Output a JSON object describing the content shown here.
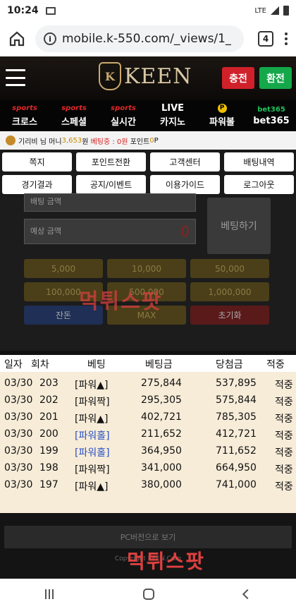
{
  "status": {
    "time": "10:24",
    "network": "LTE"
  },
  "browser": {
    "url": "mobile.k-550.com/_views/1_",
    "tab_count": "4"
  },
  "header": {
    "logo_letter": "K",
    "logo_text": "KEEN",
    "charge_label": "충전",
    "exchange_label": "환전"
  },
  "nav": [
    {
      "top": "sports",
      "label": "크로스"
    },
    {
      "top": "sports",
      "label": "스페셜"
    },
    {
      "top": "sports",
      "label": "실시간"
    },
    {
      "top": "LIVE",
      "label": "카지노"
    },
    {
      "top": "P",
      "label": "파워볼"
    },
    {
      "top": "bet365",
      "label": "bet365"
    }
  ],
  "info": {
    "user": "기리비 님",
    "money_label": "머니",
    "money": "3,653",
    "won": "원",
    "betting": "베팅중 : 0원",
    "point_label": "포인트",
    "point": "0",
    "point_unit": "P"
  },
  "menu": [
    "쪽지",
    "포인트전환",
    "고객센터",
    "배팅내역",
    "경기결과",
    "공지/이벤트",
    "이용가이드",
    "로그아웃"
  ],
  "bet": {
    "field1": "배팅 금액",
    "field2": "예상 금액",
    "field2_value": "0",
    "bet_button": "베팅하기",
    "chips": [
      "5,000",
      "10,000",
      "50,000",
      "100,000",
      "500,000",
      "1,000,000"
    ],
    "actions": [
      "잔돈",
      "MAX",
      "초기화"
    ]
  },
  "watermark": "먹튀스팟",
  "table": {
    "headers": [
      "일자",
      "회차",
      "베팅",
      "베팅금",
      "당첨금",
      "적중"
    ],
    "rows": [
      {
        "date": "03/30",
        "round": "203",
        "bet": "[파워▲]",
        "amount": "275,844",
        "win": "537,895",
        "result": "적중",
        "blue": false
      },
      {
        "date": "03/30",
        "round": "202",
        "bet": "[파워짝]",
        "amount": "295,305",
        "win": "575,844",
        "result": "적중",
        "blue": false
      },
      {
        "date": "03/30",
        "round": "201",
        "bet": "[파워▲]",
        "amount": "402,721",
        "win": "785,305",
        "result": "적중",
        "blue": false
      },
      {
        "date": "03/30",
        "round": "200",
        "bet": "[파워홀]",
        "amount": "211,652",
        "win": "412,721",
        "result": "적중",
        "blue": true
      },
      {
        "date": "03/30",
        "round": "199",
        "bet": "[파워홀]",
        "amount": "364,950",
        "win": "711,652",
        "result": "적중",
        "blue": true
      },
      {
        "date": "03/30",
        "round": "198",
        "bet": "[파워짝]",
        "amount": "341,000",
        "win": "664,950",
        "result": "적중",
        "blue": false
      },
      {
        "date": "03/30",
        "round": "197",
        "bet": "[파워▲]",
        "amount": "380,000",
        "win": "741,000",
        "result": "적중",
        "blue": false
      }
    ]
  },
  "footer": {
    "pc_button": "PC버전으로 보기",
    "copyright": "Copyright KEEN.Com"
  }
}
